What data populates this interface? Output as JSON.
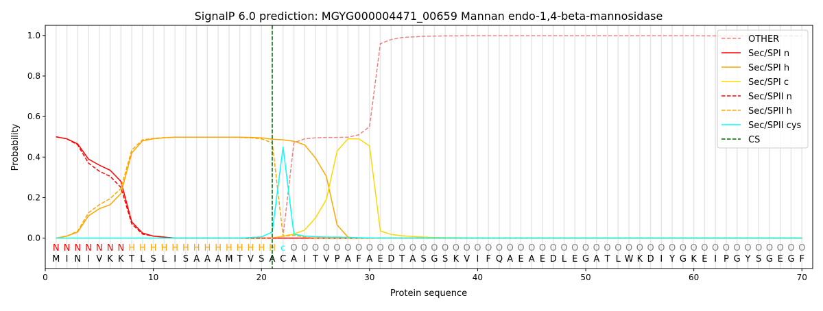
{
  "chart_data": {
    "type": "line",
    "title": "SignalP 6.0 prediction: MGYG000004471_00659 Mannan endo-1,4-beta-mannosidase",
    "xlabel": "Protein sequence",
    "ylabel": "Probability",
    "xlim": [
      0,
      71
    ],
    "ylim": [
      -0.15,
      1.05
    ],
    "xticks": [
      0,
      10,
      20,
      30,
      40,
      50,
      60,
      70
    ],
    "yticks": [
      "0.0",
      "0.2",
      "0.4",
      "0.6",
      "0.8",
      "1.0"
    ],
    "legend_position": "top-right",
    "cs_position": 21,
    "sequence": [
      "M",
      "I",
      "N",
      "I",
      "V",
      "K",
      "K",
      "T",
      "L",
      "S",
      "L",
      "I",
      "S",
      "A",
      "A",
      "A",
      "M",
      "T",
      "V",
      "S",
      "A",
      "C",
      "A",
      "I",
      "T",
      "V",
      "P",
      "A",
      "F",
      "A",
      "E",
      "D",
      "T",
      "A",
      "S",
      "G",
      "S",
      "K",
      "V",
      "I",
      "F",
      "Q",
      "A",
      "E",
      "A",
      "E",
      "D",
      "L",
      "E",
      "G",
      "A",
      "T",
      "L",
      "W",
      "K",
      "D",
      "I",
      "Y",
      "G",
      "K",
      "E",
      "I",
      "P",
      "G",
      "Y",
      "S",
      "G",
      "E",
      "G",
      "F"
    ],
    "labels": [
      "N",
      "N",
      "N",
      "N",
      "N",
      "N",
      "N",
      "H",
      "H",
      "H",
      "H",
      "H",
      "H",
      "H",
      "H",
      "H",
      "H",
      "H",
      "H",
      "H",
      "H",
      "c",
      "O",
      "O",
      "O",
      "O",
      "O",
      "O",
      "O",
      "O",
      "O",
      "O",
      "O",
      "O",
      "O",
      "O",
      "O",
      "O",
      "O",
      "O",
      "O",
      "O",
      "O",
      "O",
      "O",
      "O",
      "O",
      "O",
      "O",
      "O",
      "O",
      "O",
      "O",
      "O",
      "O",
      "O",
      "O",
      "O",
      "O",
      "O",
      "O",
      "O",
      "O",
      "O",
      "O",
      "O",
      "O",
      "O",
      "O",
      "O"
    ],
    "label_colors": {
      "N": "#ff0000",
      "H": "#ffa500",
      "c": "#00ffff",
      "O": "#808080"
    },
    "series": [
      {
        "name": "OTHER",
        "color": "#f08080",
        "dash": true,
        "values": [
          0,
          0,
          0,
          0,
          0,
          0,
          0,
          0,
          0,
          0,
          0,
          0,
          0,
          0,
          0,
          0,
          0,
          0,
          0,
          0,
          0,
          0.01,
          0.47,
          0.49,
          0.495,
          0.497,
          0.497,
          0.498,
          0.51,
          0.55,
          0.96,
          0.98,
          0.99,
          0.993,
          0.996,
          0.997,
          0.998,
          0.998,
          0.999,
          0.999,
          0.999,
          0.999,
          0.999,
          0.999,
          0.999,
          0.999,
          0.999,
          0.999,
          0.999,
          0.999,
          0.999,
          0.999,
          0.999,
          0.999,
          0.999,
          0.999,
          0.999,
          0.999,
          0.999,
          0.999,
          0.998,
          0.998,
          0.998,
          0.998,
          0.998,
          0.998,
          0.998,
          0.998,
          0.998,
          0.998
        ]
      },
      {
        "name": "Sec/SPI n",
        "color": "#ff0000",
        "dash": false,
        "values": [
          0.5,
          0.49,
          0.465,
          0.39,
          0.36,
          0.335,
          0.28,
          0.08,
          0.025,
          0.01,
          0.005,
          0,
          0,
          0,
          0,
          0,
          0,
          0,
          0,
          0,
          0,
          0,
          0,
          0,
          0,
          0,
          0,
          0,
          0,
          0,
          0,
          0,
          0,
          0,
          0,
          0,
          0,
          0,
          0,
          0,
          0,
          0,
          0,
          0,
          0,
          0,
          0,
          0,
          0,
          0,
          0,
          0,
          0,
          0,
          0,
          0,
          0,
          0,
          0,
          0,
          0,
          0,
          0,
          0,
          0,
          0,
          0,
          0,
          0,
          0
        ]
      },
      {
        "name": "Sec/SPI h",
        "color": "#ffa500",
        "dash": false,
        "values": [
          0,
          0.01,
          0.03,
          0.11,
          0.145,
          0.165,
          0.22,
          0.42,
          0.48,
          0.49,
          0.495,
          0.498,
          0.498,
          0.498,
          0.498,
          0.498,
          0.498,
          0.498,
          0.497,
          0.495,
          0.488,
          0.485,
          0.478,
          0.46,
          0.395,
          0.305,
          0.065,
          0.005,
          0,
          0,
          0,
          0,
          0,
          0,
          0,
          0,
          0,
          0,
          0,
          0,
          0,
          0,
          0,
          0,
          0,
          0,
          0,
          0,
          0,
          0,
          0,
          0,
          0,
          0,
          0,
          0,
          0,
          0,
          0,
          0,
          0,
          0,
          0,
          0,
          0,
          0,
          0,
          0,
          0,
          0
        ]
      },
      {
        "name": "Sec/SPI c",
        "color": "#ffd700",
        "dash": false,
        "values": [
          0,
          0,
          0,
          0,
          0,
          0,
          0,
          0,
          0,
          0,
          0,
          0,
          0,
          0,
          0,
          0,
          0,
          0,
          0,
          0,
          0,
          0.01,
          0.02,
          0.04,
          0.1,
          0.19,
          0.43,
          0.49,
          0.49,
          0.455,
          0.035,
          0.018,
          0.012,
          0.008,
          0.005,
          0.003,
          0.002,
          0.002,
          0.001,
          0.001,
          0.001,
          0.001,
          0.001,
          0.001,
          0.001,
          0.001,
          0.001,
          0.001,
          0.001,
          0.001,
          0.001,
          0.001,
          0.001,
          0.001,
          0.001,
          0.001,
          0.001,
          0.001,
          0.001,
          0.001,
          0.001,
          0.001,
          0.001,
          0.001,
          0.001,
          0.001,
          0.001,
          0.001,
          0.001,
          0.001
        ]
      },
      {
        "name": "Sec/SPII n",
        "color": "#ff0000",
        "dash": true,
        "values": [
          0.5,
          0.49,
          0.46,
          0.37,
          0.33,
          0.305,
          0.25,
          0.07,
          0.02,
          0.01,
          0.005,
          0,
          0,
          0,
          0,
          0,
          0,
          0,
          0,
          0,
          0,
          0,
          0,
          0,
          0,
          0,
          0,
          0,
          0,
          0,
          0,
          0,
          0,
          0,
          0,
          0,
          0,
          0,
          0,
          0,
          0,
          0,
          0,
          0,
          0,
          0,
          0,
          0,
          0,
          0,
          0,
          0,
          0,
          0,
          0,
          0,
          0,
          0,
          0,
          0,
          0,
          0,
          0,
          0,
          0,
          0,
          0,
          0,
          0,
          0
        ]
      },
      {
        "name": "Sec/SPII h",
        "color": "#ffa500",
        "dash": true,
        "values": [
          0,
          0.01,
          0.035,
          0.125,
          0.165,
          0.195,
          0.245,
          0.435,
          0.485,
          0.492,
          0.496,
          0.498,
          0.498,
          0.498,
          0.498,
          0.498,
          0.498,
          0.497,
          0.495,
          0.49,
          0.47,
          0.01,
          0.015,
          0.005,
          0,
          0,
          0,
          0,
          0,
          0,
          0,
          0,
          0,
          0,
          0,
          0,
          0,
          0,
          0,
          0,
          0,
          0,
          0,
          0,
          0,
          0,
          0,
          0,
          0,
          0,
          0,
          0,
          0,
          0,
          0,
          0,
          0,
          0,
          0,
          0,
          0,
          0,
          0,
          0,
          0,
          0,
          0,
          0,
          0,
          0
        ]
      },
      {
        "name": "Sec/SPII cys",
        "color": "#00ffff",
        "dash": false,
        "values": [
          0,
          0,
          0,
          0,
          0,
          0,
          0,
          0,
          0,
          0,
          0,
          0,
          0,
          0,
          0,
          0,
          0,
          0,
          0.003,
          0.006,
          0.03,
          0.45,
          0.02,
          0.01,
          0.007,
          0.005,
          0.005,
          0.004,
          0.002,
          0.001,
          0,
          0,
          0,
          0,
          0,
          0,
          0,
          0,
          0,
          0,
          0,
          0,
          0,
          0,
          0,
          0,
          0,
          0,
          0,
          0,
          0,
          0,
          0,
          0,
          0,
          0,
          0,
          0,
          0,
          0,
          0,
          0,
          0,
          0,
          0,
          0,
          0,
          0,
          0,
          0
        ]
      }
    ],
    "cs_legend": {
      "name": "CS",
      "color": "#006400"
    }
  }
}
